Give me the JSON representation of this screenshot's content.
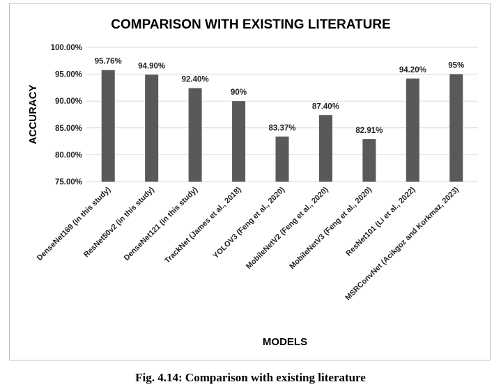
{
  "chart_data": {
    "type": "bar",
    "title": "COMPARISON WITH EXISTING LITERATURE",
    "xlabel": "MODELS",
    "ylabel": "ACCURACY",
    "ylim": [
      75,
      100
    ],
    "yticks": [
      "75.00%",
      "80.00%",
      "85.00%",
      "90.00%",
      "95.00%",
      "100.00%"
    ],
    "ytick_values": [
      75,
      80,
      85,
      90,
      95,
      100
    ],
    "grid": true,
    "bar_color": "#595959",
    "categories": [
      "DenseNet169 (in this study)",
      "ResNet50v2 (in this study)",
      "DenseNet121 (in this study)",
      "TrackNet (James et al., 2018)",
      "YOLOV3 (Feng et al., 2020)",
      "MobileNetV2 (Feng et al., 2020)",
      "MobileNetV3 (Feng et al., 2020)",
      "ResNet101 (Li et al., 2022)",
      "MSRConvNet (Acikgoz and Korkmaz, 2023)"
    ],
    "values": [
      95.76,
      94.9,
      92.4,
      90,
      83.37,
      87.4,
      82.91,
      94.2,
      95
    ],
    "data_labels": [
      "95.76%",
      "94.90%",
      "92.40%",
      "90%",
      "83.37%",
      "87.40%",
      "82.91%",
      "94.20%",
      "95%"
    ]
  },
  "caption": "Fig. 4.14: Comparison with existing literature"
}
